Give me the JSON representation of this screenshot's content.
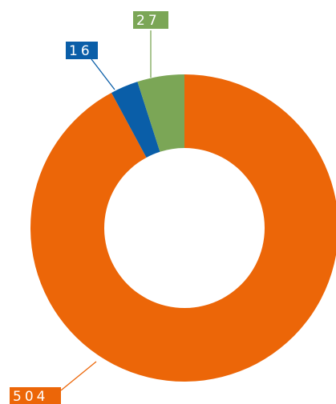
{
  "chart_data": {
    "type": "donut",
    "values": [
      504,
      16,
      27
    ],
    "colors": [
      "#ec6608",
      "#0a5ea8",
      "#7ba656"
    ]
  }
}
